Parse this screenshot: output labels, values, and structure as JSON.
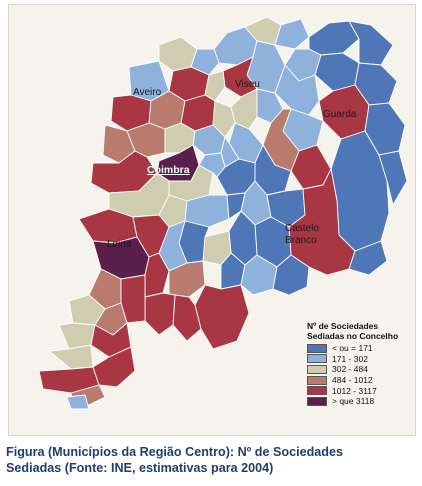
{
  "map": {
    "colors": {
      "c1": "#4f77b8",
      "c2": "#8fb2dd",
      "c3": "#cfcdb0",
      "c4": "#b87b6e",
      "c5": "#a83743",
      "c6": "#5a1f4a",
      "border": "#ffffff"
    },
    "cities": {
      "aveiro": "Aveiro",
      "viseu": "Viseu",
      "guarda": "Guarda",
      "coimbra": "Coimbra",
      "castelo1": "Castelo",
      "castelo2": "Branco",
      "leiria": "Leiria"
    }
  },
  "legend": {
    "title1": "Nº de Sociedades",
    "title2": "Sediadas no Concelho",
    "items": [
      {
        "label": "< ou = 171",
        "color": "#4f77b8"
      },
      {
        "label": "171 - 302",
        "color": "#8fb2dd"
      },
      {
        "label": "302 - 484",
        "color": "#cfcdb0"
      },
      {
        "label": "484 - 1012",
        "color": "#b87b6e"
      },
      {
        "label": "1012 - 3117",
        "color": "#a83743"
      },
      {
        "label": "> que 3118",
        "color": "#5a1f4a"
      }
    ]
  },
  "caption": {
    "line1": "Figura (Municípios da Região Centro): Nº de Sociedades",
    "line2": "Sediadas (Fonte: INE, estimativas para 2004)"
  }
}
